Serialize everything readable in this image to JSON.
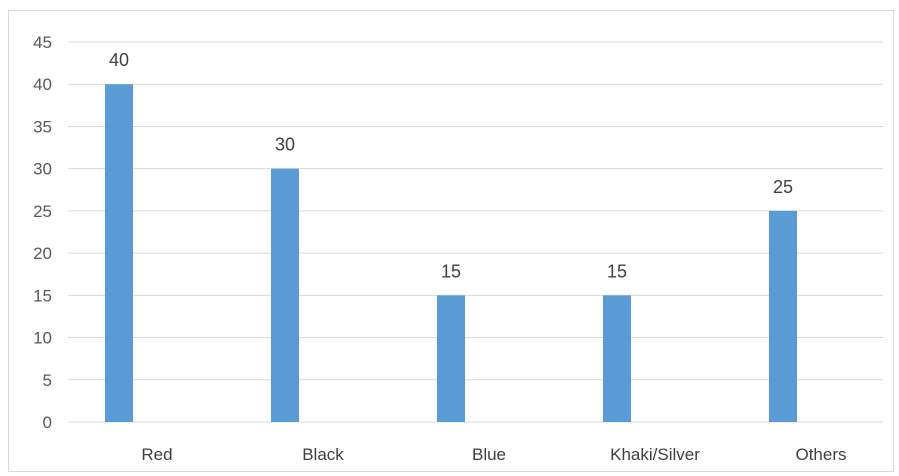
{
  "chart_data": {
    "type": "bar",
    "categories": [
      "Red",
      "Black",
      "Blue",
      "Khaki/Silver",
      "Others"
    ],
    "values": [
      40,
      30,
      15,
      15,
      25
    ],
    "title": "",
    "xlabel": "",
    "ylabel": "",
    "ylim": [
      0,
      45
    ],
    "yticks": [
      0,
      5,
      10,
      15,
      20,
      25,
      30,
      35,
      40,
      45
    ],
    "grid": true,
    "legend": "none",
    "bar_color": "#5b9bd5",
    "data_labels": true
  }
}
